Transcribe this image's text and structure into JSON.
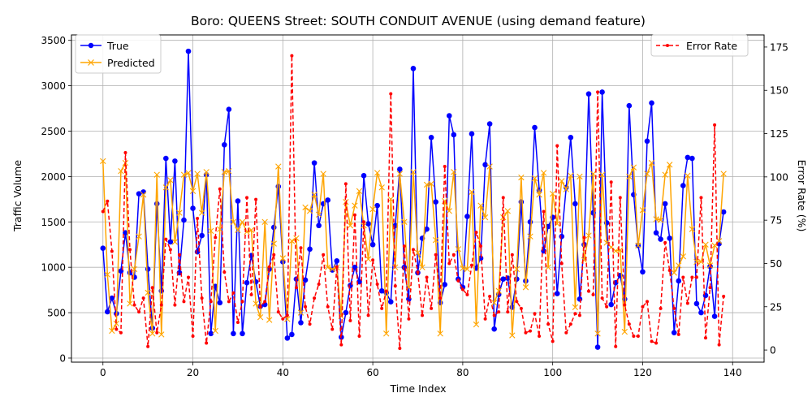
{
  "chart_data": {
    "type": "line",
    "title": "Boro: QUEENS Street: SOUTH CONDUIT AVENUE (using demand feature)",
    "xlabel": "Time Index",
    "ylabel_left": "Traffic Volume",
    "ylabel_right": "Error Rate (%)",
    "xlim": [
      -7,
      147
    ],
    "ylim_left": [
      -45,
      3560
    ],
    "ylim_right": [
      -7,
      182
    ],
    "xticks": [
      0,
      20,
      40,
      60,
      80,
      100,
      120,
      140
    ],
    "yticks_left": [
      0,
      500,
      1000,
      1500,
      2000,
      2500,
      3000,
      3500
    ],
    "yticks_right": [
      0,
      25,
      50,
      75,
      100,
      125,
      150,
      175
    ],
    "grid": true,
    "legend_left": {
      "placement": "upper-left",
      "entries": [
        "True",
        "Predicted"
      ]
    },
    "legend_right": {
      "placement": "upper-right",
      "entries": [
        "Error Rate"
      ]
    },
    "series": [
      {
        "name": "True",
        "axis": "left",
        "color": "#0000ff",
        "marker": "circle",
        "linestyle": "solid",
        "values": [
          1210,
          510,
          660,
          490,
          960,
          1380,
          940,
          890,
          1810,
          1830,
          980,
          330,
          1700,
          740,
          2200,
          1280,
          2170,
          940,
          1520,
          3380,
          1650,
          1170,
          1350,
          2020,
          270,
          790,
          610,
          2350,
          2740,
          270,
          1730,
          270,
          830,
          1130,
          840,
          570,
          590,
          980,
          1440,
          1890,
          1060,
          220,
          260,
          870,
          390,
          860,
          1200,
          2150,
          1460,
          1700,
          1740,
          970,
          1070,
          230,
          500,
          800,
          1000,
          840,
          2010,
          1480,
          1250,
          1680,
          740,
          720,
          620,
          1460,
          2080,
          1000,
          650,
          3190,
          940,
          1320,
          1420,
          2430,
          1720,
          610,
          810,
          2670,
          2460,
          870,
          780,
          1560,
          2470,
          990,
          1100,
          2130,
          2580,
          320,
          700,
          870,
          880,
          560,
          870,
          1720,
          850,
          1500,
          2540,
          1850,
          1180,
          1450,
          1550,
          710,
          1340,
          1880,
          2430,
          1700,
          650,
          1250,
          2910,
          1600,
          120,
          2930,
          1490,
          590,
          830,
          910,
          650,
          2780,
          1800,
          1240,
          950,
          2390,
          2810,
          1380,
          1310,
          1700,
          1320,
          280,
          850,
          1900,
          2210,
          2200,
          600,
          500,
          690,
          1010,
          460,
          1260,
          1610
        ]
      },
      {
        "name": "Predicted",
        "axis": "left",
        "color": "#ffa500",
        "marker": "x",
        "linestyle": "solid",
        "values": [
          2170,
          920,
          300,
          380,
          2060,
          2150,
          600,
          980,
          1340,
          1800,
          720,
          270,
          2020,
          260,
          1880,
          1960,
          1280,
          1600,
          2020,
          2040,
          1840,
          2030,
          1600,
          2050,
          1400,
          300,
          1420,
          2050,
          2060,
          1500,
          1410,
          1500,
          1390,
          1410,
          600,
          450,
          1500,
          420,
          1260,
          2110,
          1100,
          430,
          1290,
          1320,
          500,
          1660,
          1620,
          1800,
          1580,
          2030,
          1000,
          980,
          1000,
          460,
          1720,
          1460,
          1680,
          1840,
          1460,
          1090,
          1640,
          2040,
          1880,
          270,
          1750,
          1000,
          2030,
          1500,
          780,
          2050,
          1160,
          1000,
          1910,
          1920,
          1300,
          270,
          1730,
          1620,
          2050,
          1200,
          990,
          980,
          1830,
          370,
          1680,
          1550,
          2110,
          610,
          740,
          1550,
          1620,
          250,
          980,
          1990,
          780,
          1340,
          1980,
          1800,
          2040,
          1000,
          1810,
          1480,
          1950,
          1860,
          2010,
          560,
          2000,
          1080,
          1350,
          2030,
          270,
          2020,
          1270,
          1220,
          1180,
          1190,
          290,
          2000,
          2100,
          1240,
          1630,
          2030,
          2150,
          1530,
          1520,
          2020,
          2130,
          940,
          1020,
          1120,
          2010,
          1420,
          1060,
          1060,
          1250,
          1020,
          1240,
          1290,
          2030
        ]
      },
      {
        "name": "Error Rate",
        "axis": "right",
        "color": "#ff0000",
        "marker": "dot",
        "linestyle": "dashed",
        "values": [
          80,
          86,
          57,
          12,
          10,
          114,
          58,
          26,
          22,
          30,
          2,
          36,
          10,
          26,
          64,
          58,
          26,
          55,
          28,
          42,
          8,
          76,
          30,
          4,
          28,
          65,
          93,
          45,
          28,
          33,
          16,
          28,
          88,
          32,
          87,
          25,
          28,
          48,
          55,
          22,
          18,
          20,
          170,
          36,
          59,
          25,
          15,
          30,
          38,
          55,
          25,
          12,
          48,
          3,
          96,
          17,
          78,
          8,
          74,
          20,
          52,
          38,
          24,
          34,
          148,
          37,
          1,
          60,
          18,
          58,
          45,
          20,
          42,
          24,
          55,
          30,
          106,
          50,
          55,
          40,
          35,
          32,
          49,
          68,
          60,
          18,
          31,
          20,
          22,
          88,
          22,
          55,
          28,
          24,
          10,
          11,
          21,
          8,
          80,
          15,
          5,
          118,
          50,
          10,
          15,
          21,
          20,
          65,
          34,
          32,
          149,
          30,
          25,
          97,
          2,
          88,
          26,
          15,
          8,
          8,
          25,
          28,
          5,
          4,
          24,
          62,
          46,
          24,
          9,
          42,
          27,
          42,
          42,
          88,
          7,
          36,
          130,
          3,
          31
        ]
      }
    ]
  }
}
